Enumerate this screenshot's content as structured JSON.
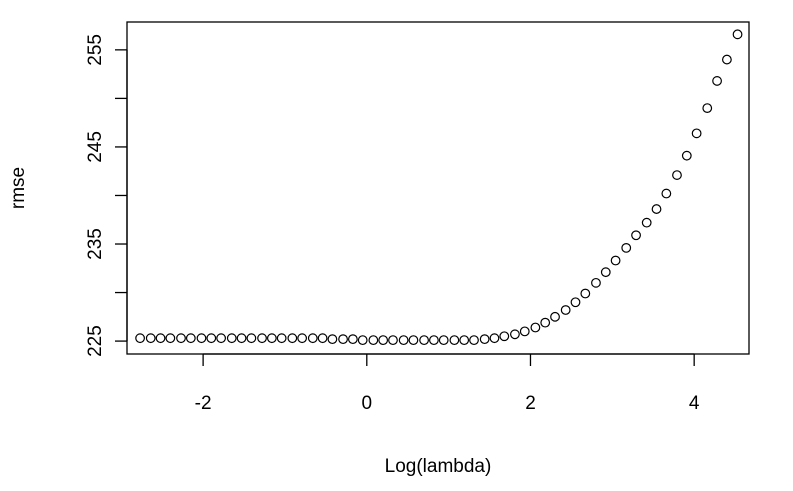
{
  "chart_data": {
    "type": "scatter",
    "title": "",
    "xlabel": "Log(lambda)",
    "ylabel": "rmse",
    "xlim": [
      -2.93,
      4.67
    ],
    "ylim": [
      223.67,
      257.87
    ],
    "x_ticks": [
      -2,
      0,
      2,
      4
    ],
    "x_tick_labels": [
      "-2",
      "0",
      "2",
      "4"
    ],
    "y_ticks": [
      225,
      230,
      235,
      240,
      245,
      250,
      255
    ],
    "y_tick_labels": [
      "225",
      "",
      "235",
      "",
      "245",
      "",
      "255"
    ],
    "grid": false,
    "marker": "open-circle",
    "color": "#000000",
    "series": [
      {
        "name": "rmse",
        "x": [
          -2.77,
          -2.64,
          -2.52,
          -2.4,
          -2.27,
          -2.15,
          -2.02,
          -1.9,
          -1.78,
          -1.65,
          -1.53,
          -1.41,
          -1.28,
          -1.16,
          -1.04,
          -0.91,
          -0.79,
          -0.66,
          -0.54,
          -0.42,
          -0.29,
          -0.17,
          -0.05,
          0.08,
          0.2,
          0.32,
          0.45,
          0.57,
          0.7,
          0.82,
          0.94,
          1.07,
          1.19,
          1.31,
          1.44,
          1.56,
          1.68,
          1.81,
          1.93,
          2.06,
          2.18,
          2.3,
          2.43,
          2.55,
          2.67,
          2.8,
          2.92,
          3.04,
          3.17,
          3.29,
          3.42,
          3.54,
          3.66,
          3.79,
          3.91,
          4.03,
          4.16,
          4.28,
          4.4,
          4.53
        ],
        "y": [
          225.3,
          225.3,
          225.3,
          225.3,
          225.3,
          225.3,
          225.3,
          225.3,
          225.3,
          225.3,
          225.3,
          225.3,
          225.3,
          225.3,
          225.3,
          225.3,
          225.3,
          225.3,
          225.3,
          225.2,
          225.2,
          225.2,
          225.1,
          225.1,
          225.1,
          225.1,
          225.1,
          225.1,
          225.1,
          225.1,
          225.1,
          225.1,
          225.1,
          225.1,
          225.2,
          225.3,
          225.5,
          225.7,
          226.0,
          226.4,
          226.9,
          227.5,
          228.2,
          229.0,
          229.9,
          231.0,
          232.1,
          233.3,
          234.6,
          235.9,
          237.2,
          238.6,
          240.2,
          242.1,
          244.1,
          246.4,
          249.0,
          251.8,
          254.0,
          256.6
        ]
      }
    ]
  }
}
